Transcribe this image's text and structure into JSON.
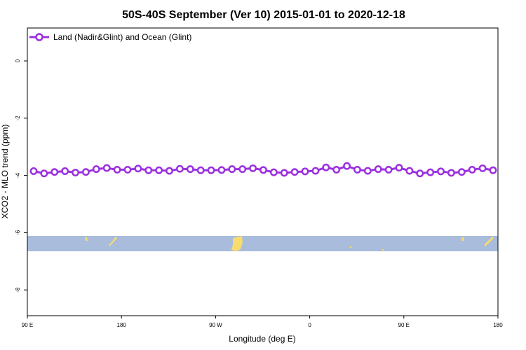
{
  "chart_data": {
    "type": "line",
    "title": "50S-40S September (Ver 10)   2015-01-01 to 2020-12-18",
    "xlabel": "Longitude (deg E)",
    "ylabel": "XCO2 - MLO trend (ppm)",
    "x_tick_labels": [
      "90 E",
      "180",
      "90 W",
      "0",
      "90 E",
      "180"
    ],
    "y_ticks": [
      0,
      -2,
      -4,
      -6,
      -8
    ],
    "y_tick_labels": [
      "0",
      "-2",
      "-4",
      "-6",
      "-8"
    ],
    "ylim": [
      -8.9,
      1.15
    ],
    "grid": false,
    "legend_position": "top-left",
    "series": [
      {
        "name": "Land (Nadir&Glint) and Ocean (Glint)",
        "color": "#9b30e0",
        "values": [
          -3.85,
          -3.93,
          -3.88,
          -3.85,
          -3.9,
          -3.88,
          -3.78,
          -3.74,
          -3.8,
          -3.8,
          -3.76,
          -3.82,
          -3.82,
          -3.84,
          -3.77,
          -3.78,
          -3.82,
          -3.82,
          -3.81,
          -3.78,
          -3.78,
          -3.75,
          -3.81,
          -3.89,
          -3.91,
          -3.88,
          -3.86,
          -3.84,
          -3.72,
          -3.8,
          -3.67,
          -3.8,
          -3.84,
          -3.78,
          -3.8,
          -3.73,
          -3.84,
          -3.93,
          -3.89,
          -3.86,
          -3.91,
          -3.88,
          -3.8,
          -3.75,
          -3.82
        ]
      }
    ],
    "map_band": {
      "ocean_color": "#a9bcdc",
      "land_color": "#f7dc6f",
      "lat_range": [
        -6.1,
        -6.65
      ]
    }
  }
}
